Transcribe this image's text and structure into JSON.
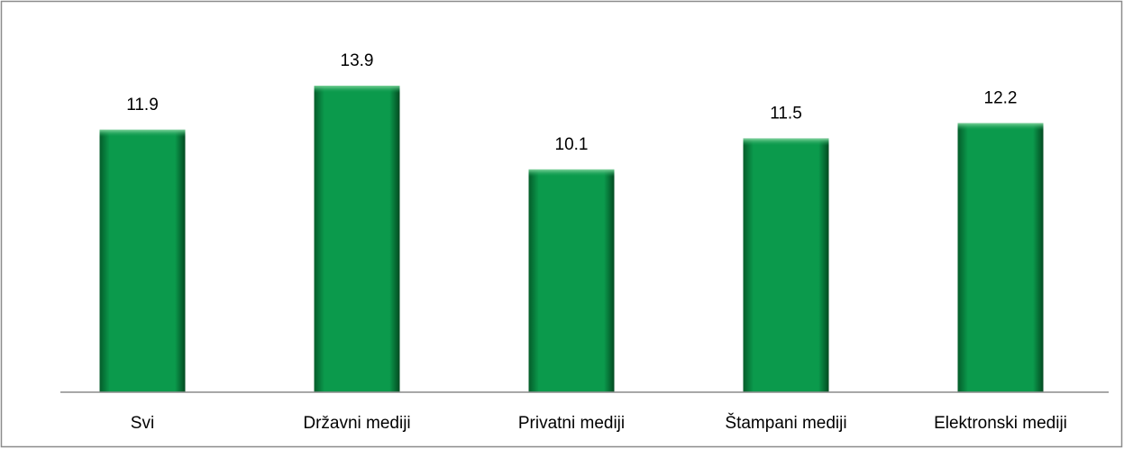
{
  "chart_data": {
    "type": "bar",
    "categories": [
      "Svi",
      "Državni mediji",
      "Privatni mediji",
      "Štampani mediji",
      "Elektronski mediji"
    ],
    "values": [
      11.9,
      13.9,
      10.1,
      11.5,
      12.2
    ],
    "color": "#0b9a4c"
  }
}
